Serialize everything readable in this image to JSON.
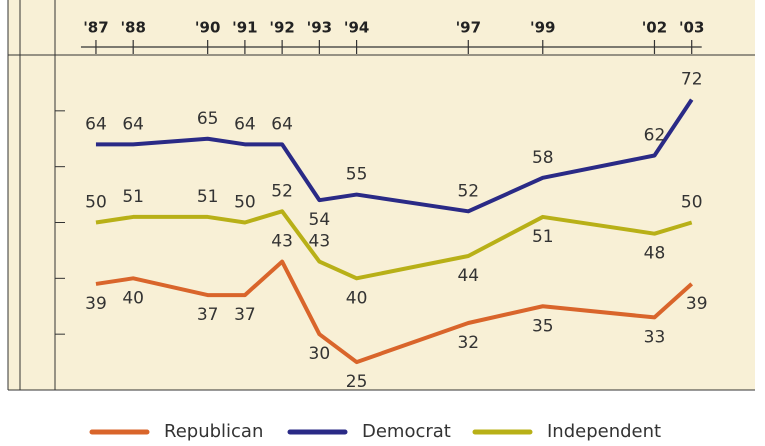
{
  "chart_data": {
    "type": "line",
    "x": [
      1987,
      1988,
      1990,
      1991,
      1992,
      1993,
      1994,
      1997,
      1999,
      2002,
      2003
    ],
    "xlim": [
      1985.9,
      2004.7
    ],
    "xticks": [
      {
        "value": 1987,
        "label": "'87"
      },
      {
        "value": 1988,
        "label": "'88"
      },
      {
        "value": 1990,
        "label": "'90"
      },
      {
        "value": 1991,
        "label": "'91"
      },
      {
        "value": 1992,
        "label": "'92"
      },
      {
        "value": 1993,
        "label": "'93"
      },
      {
        "value": 1994,
        "label": "'94"
      },
      {
        "value": 1997,
        "label": "'97"
      },
      {
        "value": 1999,
        "label": "'99"
      },
      {
        "value": 2002,
        "label": "'02"
      },
      {
        "value": 2003,
        "label": "'03"
      }
    ],
    "ylim": [
      20,
      80
    ],
    "yticks": [
      30,
      40,
      50,
      60,
      70
    ],
    "series": [
      {
        "name": "Republican",
        "color": "#d9652b",
        "values": [
          39,
          40,
          37,
          37,
          43,
          30,
          25,
          32,
          35,
          33,
          39
        ]
      },
      {
        "name": "Democrat",
        "color": "#2a2a86",
        "values": [
          64,
          64,
          65,
          64,
          64,
          54,
          55,
          52,
          58,
          62,
          72
        ]
      },
      {
        "name": "Independent",
        "color": "#b8b017",
        "values": [
          50,
          51,
          51,
          50,
          52,
          43,
          40,
          44,
          51,
          48,
          50
        ]
      }
    ]
  }
}
